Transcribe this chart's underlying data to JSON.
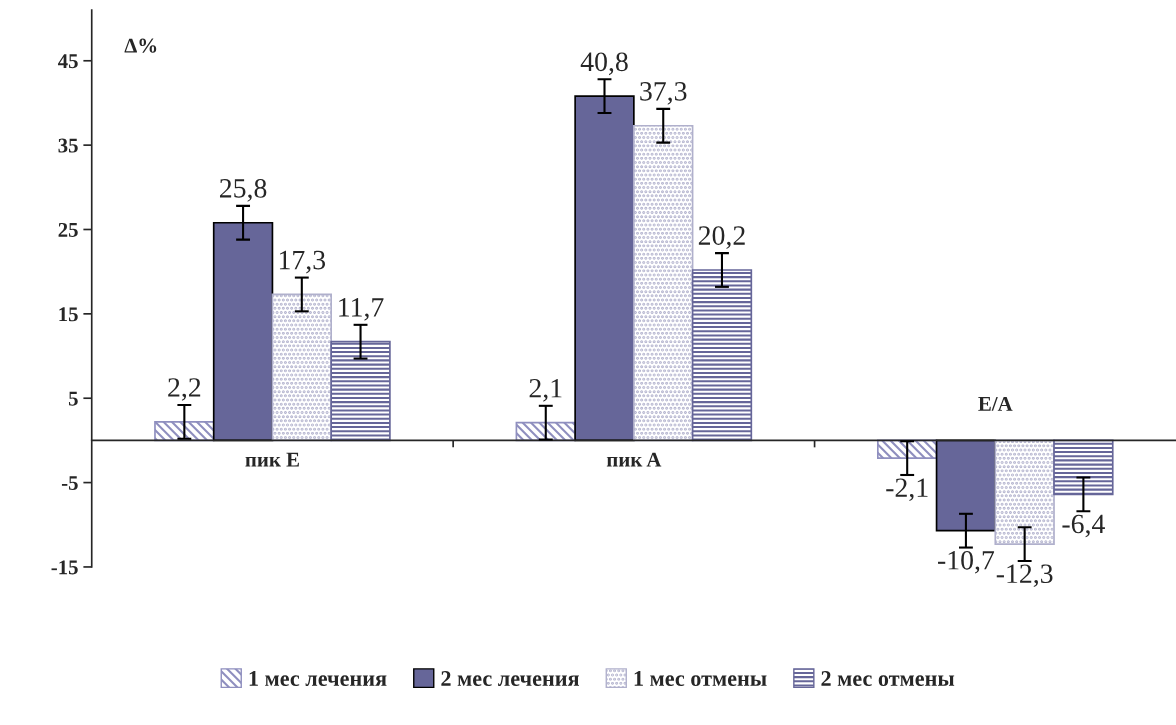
{
  "chart_data": {
    "type": "bar",
    "ylabel": "Δ%",
    "categories": [
      "пик E",
      "пик A",
      "E/A"
    ],
    "series": [
      {
        "name": "1 мес лечения",
        "color": "#8f8fbf",
        "values": [
          2.2,
          2.1,
          -2.1
        ],
        "value_labels": [
          "2,2",
          "2,1",
          "-2,1"
        ],
        "errors": [
          2,
          2,
          2
        ]
      },
      {
        "name": "2 мес лечения",
        "color": "#666699",
        "values": [
          25.8,
          40.8,
          -10.7
        ],
        "value_labels": [
          "25,8",
          "40,8",
          "-10,7"
        ],
        "errors": [
          2,
          2,
          2
        ]
      },
      {
        "name": "1 мес отмены",
        "color": "#b0b0cc",
        "values": [
          17.3,
          37.3,
          -12.3
        ],
        "value_labels": [
          "17,3",
          "37,3",
          "-12,3"
        ],
        "errors": [
          2,
          2,
          2
        ]
      },
      {
        "name": "2 мес отмены",
        "color": "#666699",
        "values": [
          11.7,
          20.2,
          -6.4
        ],
        "value_labels": [
          "11,7",
          "20,2",
          "-6,4"
        ],
        "errors": [
          2,
          2,
          2
        ]
      }
    ],
    "ylim": [
      -15,
      51
    ],
    "yticks": [
      -15,
      -5,
      5,
      15,
      25,
      35,
      45
    ],
    "grid": false,
    "legend": "bottom"
  }
}
